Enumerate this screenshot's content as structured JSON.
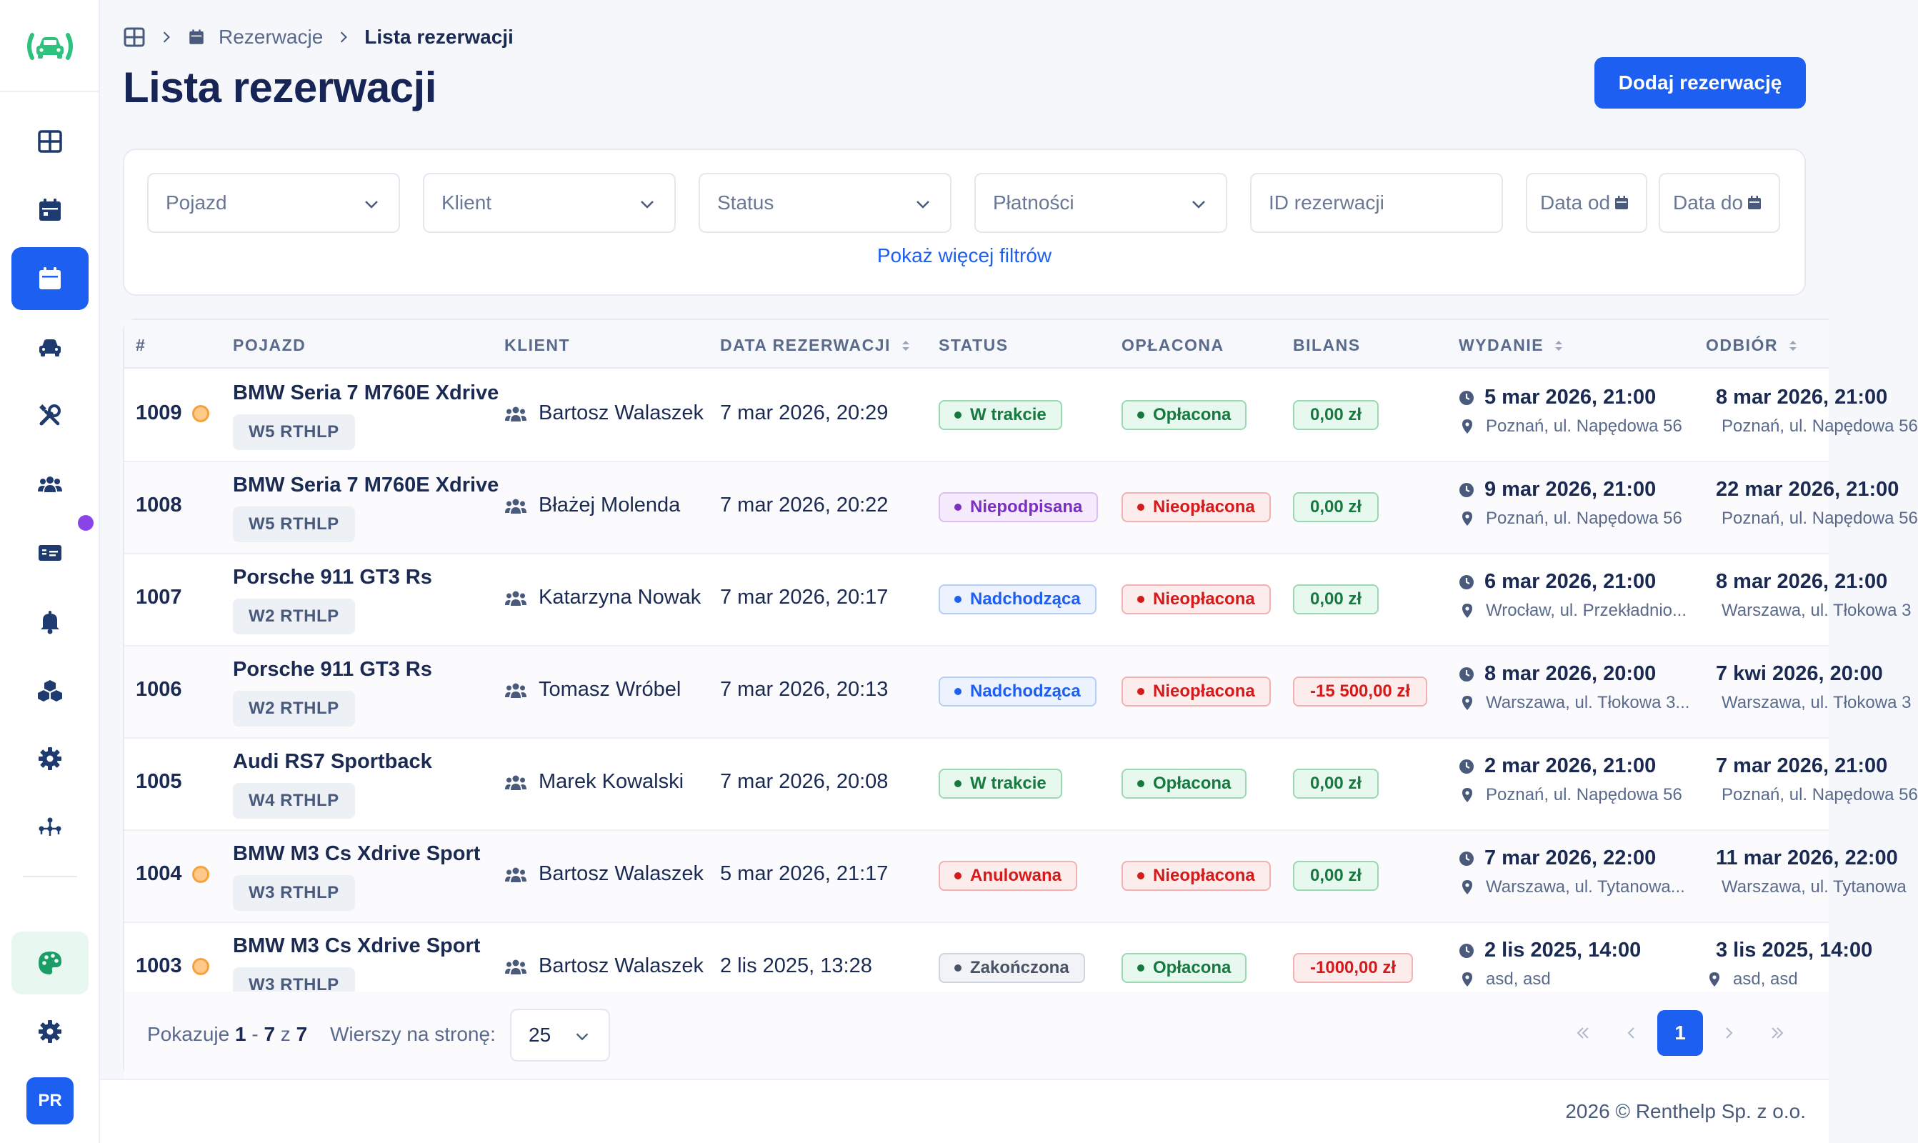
{
  "sidebar": {
    "avatar": "PR"
  },
  "breadcrumb": {
    "section": "Rezerwacje",
    "current": "Lista rezerwacji"
  },
  "page": {
    "title": "Lista rezerwacji",
    "add_button": "Dodaj rezerwację"
  },
  "filters": {
    "vehicle": "Pojazd",
    "client": "Klient",
    "status": "Status",
    "payments": "Płatności",
    "reservation_id": "ID rezerwacji",
    "date_from": "Data od",
    "date_to": "Data do",
    "more": "Pokaż więcej filtrów"
  },
  "table": {
    "columns": {
      "id": "#",
      "vehicle": "POJAZD",
      "client": "KLIENT",
      "date": "DATA REZERWACJI",
      "status": "STATUS",
      "paid": "OPŁACONA",
      "balance": "BILANS",
      "issue": "WYDANIE",
      "return": "ODBIÓR"
    },
    "rows": [
      {
        "id": "1009",
        "warn": true,
        "vehicle": "BMW Seria 7 M760E Xdrive",
        "plate": "W5 RTHLP",
        "client": "Bartosz Walaszek",
        "date": "7 mar 2026, 20:29",
        "status": "W trakcie",
        "status_style": "green",
        "paid": "Opłacona",
        "paid_style": "green",
        "balance": "0,00 zł",
        "balance_style": "ok",
        "issue_dt": "5 mar 2026, 21:00",
        "issue_loc": "Poznań, ul. Napędowa 56",
        "ret_dt": "8 mar 2026, 21:00",
        "ret_loc": "Poznań, ul. Napędowa 56"
      },
      {
        "id": "1008",
        "warn": false,
        "vehicle": "BMW Seria 7 M760E Xdrive",
        "plate": "W5 RTHLP",
        "client": "Błażej Molenda",
        "date": "7 mar 2026, 20:22",
        "status": "Niepodpisana",
        "status_style": "purple",
        "paid": "Nieopłacona",
        "paid_style": "red",
        "balance": "0,00 zł",
        "balance_style": "ok",
        "issue_dt": "9 mar 2026, 21:00",
        "issue_loc": "Poznań, ul. Napędowa 56",
        "ret_dt": "22 mar 2026, 21:00",
        "ret_loc": "Poznań, ul. Napędowa 56"
      },
      {
        "id": "1007",
        "warn": false,
        "vehicle": "Porsche 911 GT3 Rs",
        "plate": "W2 RTHLP",
        "client": "Katarzyna Nowak",
        "date": "7 mar 2026, 20:17",
        "status": "Nadchodząca",
        "status_style": "blue",
        "paid": "Nieopłacona",
        "paid_style": "red",
        "balance": "0,00 zł",
        "balance_style": "ok",
        "issue_dt": "6 mar 2026, 21:00",
        "issue_loc": "Wrocław, ul. Przekładnio...",
        "ret_dt": "8 mar 2026, 21:00",
        "ret_loc": "Warszawa, ul. Tłokowa 3"
      },
      {
        "id": "1006",
        "warn": false,
        "vehicle": "Porsche 911 GT3 Rs",
        "plate": "W2 RTHLP",
        "client": "Tomasz Wróbel",
        "date": "7 mar 2026, 20:13",
        "status": "Nadchodząca",
        "status_style": "blue",
        "paid": "Nieopłacona",
        "paid_style": "red",
        "balance": "-15 500,00 zł",
        "balance_style": "neg",
        "issue_dt": "8 mar 2026, 20:00",
        "issue_loc": "Warszawa, ul. Tłokowa 3...",
        "ret_dt": "7 kwi 2026, 20:00",
        "ret_loc": "Warszawa, ul. Tłokowa 3"
      },
      {
        "id": "1005",
        "warn": false,
        "vehicle": "Audi RS7 Sportback",
        "plate": "W4 RTHLP",
        "client": "Marek Kowalski",
        "date": "7 mar 2026, 20:08",
        "status": "W trakcie",
        "status_style": "green",
        "paid": "Opłacona",
        "paid_style": "green",
        "balance": "0,00 zł",
        "balance_style": "ok",
        "issue_dt": "2 mar 2026, 21:00",
        "issue_loc": "Poznań, ul. Napędowa 56",
        "ret_dt": "7 mar 2026, 21:00",
        "ret_loc": "Poznań, ul. Napędowa 56"
      },
      {
        "id": "1004",
        "warn": true,
        "vehicle": "BMW M3 Cs Xdrive Sport",
        "plate": "W3 RTHLP",
        "client": "Bartosz Walaszek",
        "date": "5 mar 2026, 21:17",
        "status": "Anulowana",
        "status_style": "red",
        "paid": "Nieopłacona",
        "paid_style": "red",
        "balance": "0,00 zł",
        "balance_style": "ok",
        "issue_dt": "7 mar 2026, 22:00",
        "issue_loc": "Warszawa, ul. Tytanowa...",
        "ret_dt": "11 mar 2026, 22:00",
        "ret_loc": "Warszawa, ul. Tytanowa"
      },
      {
        "id": "1003",
        "warn": true,
        "vehicle": "BMW M3 Cs Xdrive Sport",
        "plate": "W3 RTHLP",
        "client": "Bartosz Walaszek",
        "date": "2 lis 2025, 13:28",
        "status": "Zakończona",
        "status_style": "gray",
        "paid": "Opłacona",
        "paid_style": "green",
        "balance": "-1000,00 zł",
        "balance_style": "neg",
        "issue_dt": "2 lis 2025, 14:00",
        "issue_loc": "asd, asd",
        "ret_dt": "3 lis 2025, 14:00",
        "ret_loc": "asd, asd"
      }
    ]
  },
  "pagination": {
    "showing_label": "Pokazuje",
    "from": "1",
    "sep": "-",
    "to": "7",
    "of_label": "z",
    "total": "7",
    "rows_label": "Wierszy na stronę:",
    "rows_value": "25",
    "current_page": "1"
  },
  "footer": {
    "text": "2026 © Renthelp Sp. z o.o."
  },
  "colors": {
    "primary": "#1d5ff0",
    "brand_green": "#2ec27e",
    "title": "#162456"
  }
}
